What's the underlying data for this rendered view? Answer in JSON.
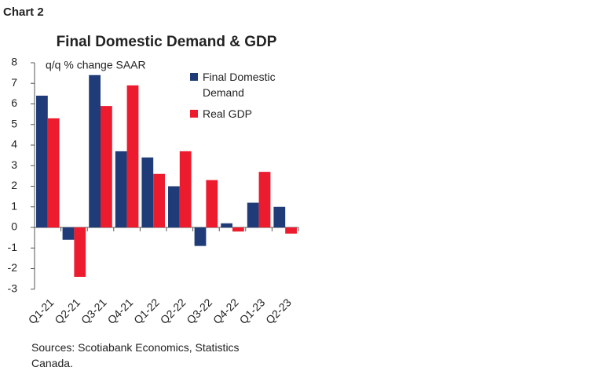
{
  "chart_label": "Chart 2",
  "chart_data": {
    "type": "bar",
    "title": "Final Domestic Demand & GDP",
    "annotation": "q/q % change SAAR",
    "categories": [
      "Q1-21",
      "Q2-21",
      "Q3-21",
      "Q4-21",
      "Q1-22",
      "Q2-22",
      "Q3-22",
      "Q4-22",
      "Q1-23",
      "Q2-23"
    ],
    "series": [
      {
        "name": "Final Domestic Demand",
        "color": "#1f3c78",
        "values": [
          6.4,
          -0.6,
          7.4,
          3.7,
          3.4,
          2.0,
          -0.9,
          0.2,
          1.2,
          1.0
        ]
      },
      {
        "name": "Real GDP",
        "color": "#ec1c2e",
        "values": [
          5.3,
          -2.4,
          5.9,
          6.9,
          2.6,
          3.7,
          2.3,
          -0.2,
          2.7,
          -0.3
        ]
      }
    ],
    "ylim": [
      -3,
      8
    ],
    "yticks": [
      -3,
      -2,
      -1,
      0,
      1,
      2,
      3,
      4,
      5,
      6,
      7,
      8
    ],
    "grid": false,
    "legend": "upper right"
  },
  "source": "Sources: Scotiabank Economics, Statistics Canada."
}
